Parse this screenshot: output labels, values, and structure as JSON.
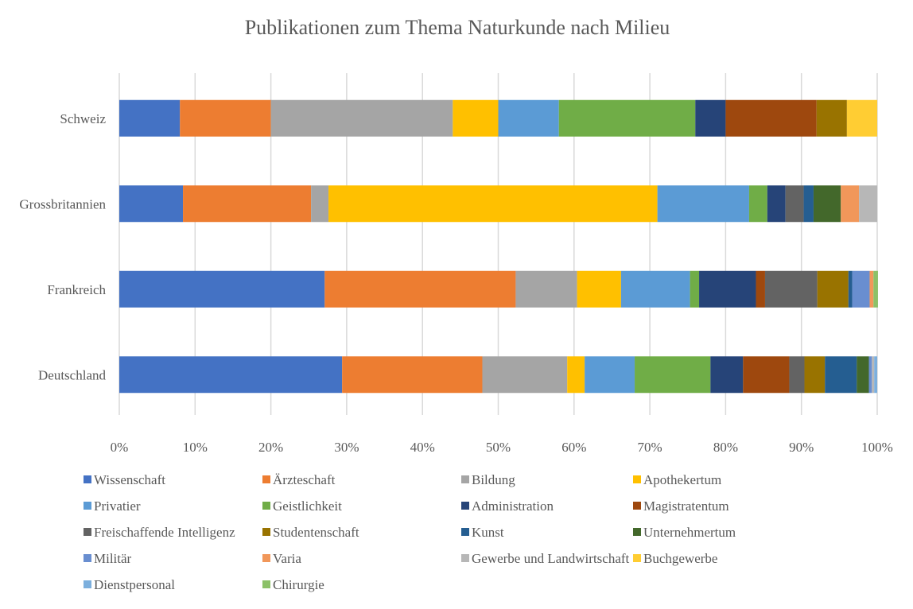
{
  "chart_data": {
    "type": "bar",
    "orientation": "horizontal",
    "stacked": "100%",
    "title": "Publikationen zum Thema Naturkunde nach Milieu",
    "xlim": [
      0,
      100
    ],
    "x_ticks": [
      "0%",
      "10%",
      "20%",
      "30%",
      "40%",
      "50%",
      "60%",
      "70%",
      "80%",
      "90%",
      "100%"
    ],
    "grid": "vertical",
    "legend_position": "bottom",
    "categories": [
      "Schweiz",
      "Grossbritannien",
      "Frankreich",
      "Deutschland"
    ],
    "series": [
      {
        "name": "Wissenschaft",
        "color": "#4472C4",
        "values": [
          8,
          8.4,
          27.1,
          29.4
        ]
      },
      {
        "name": "Ärzteschaft",
        "color": "#ED7D31",
        "values": [
          12,
          16.9,
          25.2,
          18.5
        ]
      },
      {
        "name": "Bildung",
        "color": "#A5A5A5",
        "values": [
          24,
          2.3,
          8.1,
          11.2
        ]
      },
      {
        "name": "Apothekertum",
        "color": "#FFC000",
        "values": [
          6,
          43.4,
          5.8,
          2.3
        ]
      },
      {
        "name": "Privatier",
        "color": "#5B9BD5",
        "values": [
          8,
          12.1,
          9.1,
          6.6
        ]
      },
      {
        "name": "Geistlichkeit",
        "color": "#70AD47",
        "values": [
          18,
          2.4,
          1.2,
          10.0
        ]
      },
      {
        "name": "Administration",
        "color": "#264478",
        "values": [
          4,
          2.4,
          7.5,
          4.3
        ]
      },
      {
        "name": "Magistratentum",
        "color": "#9E480E",
        "values": [
          12,
          0,
          1.2,
          6.1
        ]
      },
      {
        "name": "Freischaffende Intelligenz",
        "color": "#636363",
        "values": [
          0,
          2.4,
          6.9,
          2.0
        ]
      },
      {
        "name": "Studentenschaft",
        "color": "#997300",
        "values": [
          4,
          0,
          4.1,
          2.7
        ]
      },
      {
        "name": "Kunst",
        "color": "#255E91",
        "values": [
          0,
          1.3,
          0.5,
          4.2
        ]
      },
      {
        "name": "Unternehmertum",
        "color": "#43682B",
        "values": [
          0,
          3.6,
          0,
          1.6
        ]
      },
      {
        "name": "Militär",
        "color": "#698ED0",
        "values": [
          0,
          0,
          2.3,
          0.4
        ]
      },
      {
        "name": "Varia",
        "color": "#F1975A",
        "values": [
          0,
          2.4,
          0.5,
          0
        ]
      },
      {
        "name": "Gewerbe und Landwirtschaft",
        "color": "#B7B7B7",
        "values": [
          0,
          2.4,
          0,
          0.3
        ]
      },
      {
        "name": "Buchgewerbe",
        "color": "#FFCD33",
        "values": [
          4,
          0,
          0,
          0
        ]
      },
      {
        "name": "Dienstpersonal",
        "color": "#7CAFDD",
        "values": [
          0,
          0,
          0,
          0.4
        ]
      },
      {
        "name": "Chirurgie",
        "color": "#8CC168",
        "values": [
          0,
          0,
          0.6,
          0
        ]
      }
    ]
  }
}
